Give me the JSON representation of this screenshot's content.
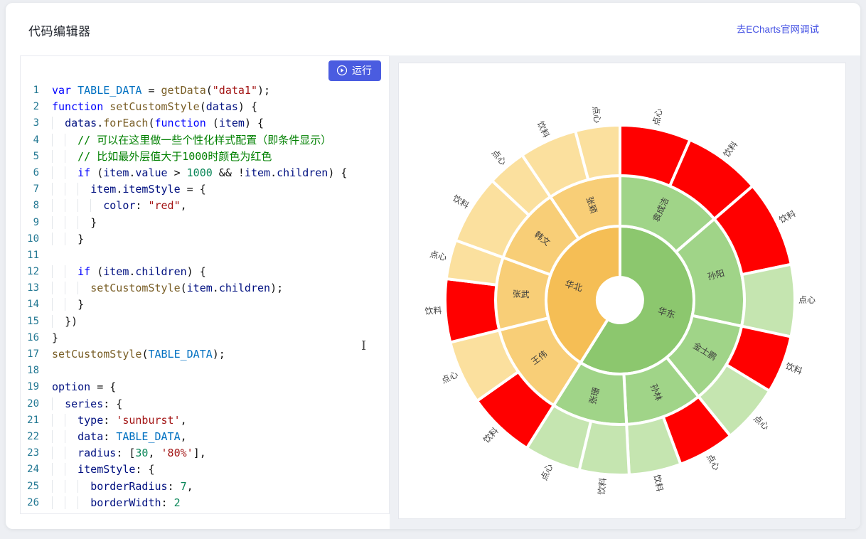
{
  "header": {
    "title": "代码编辑器",
    "link": "去ECharts官网调试"
  },
  "editor": {
    "run_label": "运行",
    "lines": [
      {
        "n": "1",
        "ind": "",
        "tokens": [
          [
            "kw",
            "var"
          ],
          [
            "d",
            " "
          ],
          [
            "cv",
            "TABLE_DATA"
          ],
          [
            "d",
            " = "
          ],
          [
            "fn",
            "getData"
          ],
          [
            "d",
            "("
          ],
          [
            "s",
            "\"data1\""
          ],
          [
            "d",
            ");"
          ]
        ]
      },
      {
        "n": "2",
        "ind": "",
        "tokens": [
          [
            "kw",
            "function"
          ],
          [
            "d",
            " "
          ],
          [
            "fn",
            "setCustomStyle"
          ],
          [
            "d",
            "("
          ],
          [
            "v",
            "datas"
          ],
          [
            "d",
            ") {"
          ]
        ]
      },
      {
        "n": "3",
        "ind": "  ",
        "tokens": [
          [
            "v",
            "datas"
          ],
          [
            "d",
            "."
          ],
          [
            "fn",
            "forEach"
          ],
          [
            "d",
            "("
          ],
          [
            "kw",
            "function"
          ],
          [
            "d",
            " ("
          ],
          [
            "v",
            "item"
          ],
          [
            "d",
            ") {"
          ]
        ]
      },
      {
        "n": "4",
        "ind": "    ",
        "tokens": [
          [
            "c",
            "// 可以在这里做一些个性化样式配置（即条件显示）"
          ]
        ]
      },
      {
        "n": "5",
        "ind": "    ",
        "tokens": [
          [
            "c",
            "// 比如最外层值大于1000时颜色为红色"
          ]
        ]
      },
      {
        "n": "6",
        "ind": "    ",
        "tokens": [
          [
            "kw",
            "if"
          ],
          [
            "d",
            " ("
          ],
          [
            "v",
            "item"
          ],
          [
            "d",
            "."
          ],
          [
            "v",
            "value"
          ],
          [
            "d",
            " > "
          ],
          [
            "n",
            "1000"
          ],
          [
            "d",
            " && !"
          ],
          [
            "v",
            "item"
          ],
          [
            "d",
            "."
          ],
          [
            "v",
            "children"
          ],
          [
            "d",
            ") {"
          ]
        ]
      },
      {
        "n": "7",
        "ind": "      ",
        "tokens": [
          [
            "v",
            "item"
          ],
          [
            "d",
            "."
          ],
          [
            "v",
            "itemStyle"
          ],
          [
            "d",
            " = {"
          ]
        ]
      },
      {
        "n": "8",
        "ind": "        ",
        "tokens": [
          [
            "v",
            "color"
          ],
          [
            "d",
            ": "
          ],
          [
            "s",
            "\"red\""
          ],
          [
            "d",
            ","
          ]
        ]
      },
      {
        "n": "9",
        "ind": "      ",
        "tokens": [
          [
            "d",
            "}"
          ]
        ]
      },
      {
        "n": "10",
        "ind": "    ",
        "tokens": [
          [
            "d",
            "}"
          ]
        ]
      },
      {
        "n": "11",
        "ind": "",
        "tokens": []
      },
      {
        "n": "12",
        "ind": "    ",
        "tokens": [
          [
            "kw",
            "if"
          ],
          [
            "d",
            " ("
          ],
          [
            "v",
            "item"
          ],
          [
            "d",
            "."
          ],
          [
            "v",
            "children"
          ],
          [
            "d",
            ") {"
          ]
        ]
      },
      {
        "n": "13",
        "ind": "      ",
        "tokens": [
          [
            "fn",
            "setCustomStyle"
          ],
          [
            "d",
            "("
          ],
          [
            "v",
            "item"
          ],
          [
            "d",
            "."
          ],
          [
            "v",
            "children"
          ],
          [
            "d",
            ");"
          ]
        ]
      },
      {
        "n": "14",
        "ind": "    ",
        "tokens": [
          [
            "d",
            "}"
          ]
        ]
      },
      {
        "n": "15",
        "ind": "  ",
        "tokens": [
          [
            "d",
            "})"
          ]
        ]
      },
      {
        "n": "16",
        "ind": "",
        "tokens": [
          [
            "d",
            "}"
          ]
        ]
      },
      {
        "n": "17",
        "ind": "",
        "tokens": [
          [
            "fn",
            "setCustomStyle"
          ],
          [
            "d",
            "("
          ],
          [
            "cv",
            "TABLE_DATA"
          ],
          [
            "d",
            ");"
          ]
        ]
      },
      {
        "n": "18",
        "ind": "",
        "tokens": []
      },
      {
        "n": "19",
        "ind": "",
        "tokens": [
          [
            "v",
            "option"
          ],
          [
            "d",
            " = {"
          ]
        ]
      },
      {
        "n": "20",
        "ind": "  ",
        "tokens": [
          [
            "v",
            "series"
          ],
          [
            "d",
            ": {"
          ]
        ]
      },
      {
        "n": "21",
        "ind": "    ",
        "tokens": [
          [
            "v",
            "type"
          ],
          [
            "d",
            ": "
          ],
          [
            "s",
            "'sunburst'"
          ],
          [
            "d",
            ","
          ]
        ]
      },
      {
        "n": "22",
        "ind": "    ",
        "tokens": [
          [
            "v",
            "data"
          ],
          [
            "d",
            ": "
          ],
          [
            "cv",
            "TABLE_DATA"
          ],
          [
            "d",
            ","
          ]
        ]
      },
      {
        "n": "23",
        "ind": "    ",
        "tokens": [
          [
            "v",
            "radius"
          ],
          [
            "d",
            ": ["
          ],
          [
            "n",
            "30"
          ],
          [
            "d",
            ", "
          ],
          [
            "s",
            "'80%'"
          ],
          [
            "d",
            "],"
          ]
        ]
      },
      {
        "n": "24",
        "ind": "    ",
        "tokens": [
          [
            "v",
            "itemStyle"
          ],
          [
            "d",
            ": {"
          ]
        ]
      },
      {
        "n": "25",
        "ind": "      ",
        "tokens": [
          [
            "v",
            "borderRadius"
          ],
          [
            "d",
            ": "
          ],
          [
            "n",
            "7"
          ],
          [
            "d",
            ","
          ]
        ]
      },
      {
        "n": "26",
        "ind": "      ",
        "tokens": [
          [
            "v",
            "borderWidth"
          ],
          [
            "d",
            ": "
          ],
          [
            "n",
            "2"
          ]
        ]
      }
    ]
  },
  "chart_data": {
    "type": "sunburst",
    "center": [
      311,
      333
    ],
    "ring_radii": [
      32,
      104,
      175,
      246
    ],
    "outer_label_radius": 251,
    "label_color": "#3c3c3c",
    "highlight_color": "#ff0000",
    "levels": [
      {
        "ring": 1,
        "segments": [
          {
            "name": "华东",
            "a0": 0,
            "a1": 212.2,
            "color": "#8cc76e"
          },
          {
            "name": "华北",
            "a0": 212.2,
            "a1": 360,
            "color": "#f5be55"
          }
        ]
      },
      {
        "ring": 2,
        "segments": [
          {
            "name": "袁成洁",
            "a0": 0,
            "a1": 49.3,
            "color": "#a0d488"
          },
          {
            "name": "孙阳",
            "a0": 49.3,
            "a1": 102.1,
            "color": "#a0d488"
          },
          {
            "name": "金士鹏",
            "a0": 102.1,
            "a1": 140.9,
            "color": "#a0d488"
          },
          {
            "name": "孙林",
            "a0": 140.9,
            "a1": 177,
            "color": "#a0d488"
          },
          {
            "name": "张珊",
            "a0": 177,
            "a1": 212.2,
            "color": "#a0d488"
          },
          {
            "name": "王伟",
            "a0": 212.2,
            "a1": 256,
            "color": "#f8ce77"
          },
          {
            "name": "张武",
            "a0": 256,
            "a1": 290,
            "color": "#f8ce77"
          },
          {
            "name": "韩文",
            "a0": 290,
            "a1": 326,
            "color": "#f8ce77"
          },
          {
            "name": "张颖",
            "a0": 326,
            "a1": 360,
            "color": "#f8ce77"
          }
        ]
      },
      {
        "ring": 3,
        "segments": [
          {
            "name": "点心",
            "a0": 0,
            "a1": 23.6,
            "color": "#ff0000"
          },
          {
            "name": "饮料",
            "a0": 23.6,
            "a1": 49.3,
            "color": "#ff0000"
          },
          {
            "name": "饮料",
            "a0": 49.3,
            "a1": 78.2,
            "color": "#ff0000"
          },
          {
            "name": "点心",
            "a0": 78.2,
            "a1": 102.1,
            "color": "#c5e5b0"
          },
          {
            "name": "饮料",
            "a0": 102.1,
            "a1": 121.3,
            "color": "#ff0000"
          },
          {
            "name": "点心",
            "a0": 121.3,
            "a1": 140.9,
            "color": "#c5e5b0"
          },
          {
            "name": "点心",
            "a0": 140.9,
            "a1": 159.7,
            "color": "#ff0000"
          },
          {
            "name": "饮料",
            "a0": 159.7,
            "a1": 177,
            "color": "#c5e5b0"
          },
          {
            "name": "饮料",
            "a0": 177,
            "a1": 193.5,
            "color": "#c5e5b0"
          },
          {
            "name": "点心",
            "a0": 193.5,
            "a1": 212.2,
            "color": "#c5e5b0"
          },
          {
            "name": "饮料",
            "a0": 212.2,
            "a1": 234.8,
            "color": "#ff0000"
          },
          {
            "name": "点心",
            "a0": 234.8,
            "a1": 256,
            "color": "#fbe09e"
          },
          {
            "name": "饮料",
            "a0": 256,
            "a1": 277,
            "color": "#ff0000"
          },
          {
            "name": "点心",
            "a0": 277,
            "a1": 290,
            "color": "#fbe09e"
          },
          {
            "name": "饮料",
            "a0": 290,
            "a1": 313,
            "color": "#fbe09e"
          },
          {
            "name": "点心",
            "a0": 313,
            "a1": 326,
            "color": "#fbe09e"
          },
          {
            "name": "饮料",
            "a0": 326,
            "a1": 345.2,
            "color": "#fbe09e"
          },
          {
            "name": "点心",
            "a0": 345.2,
            "a1": 360,
            "color": "#fbe09e"
          }
        ]
      }
    ]
  }
}
